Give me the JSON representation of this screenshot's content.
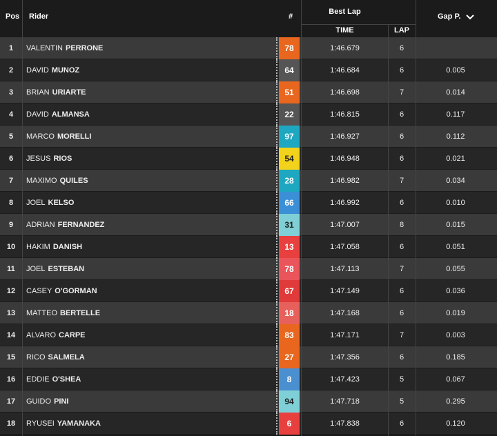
{
  "header": {
    "pos": "Pos",
    "rider": "Rider",
    "number": "#",
    "best_lap": "Best Lap",
    "time": "TIME",
    "lap": "LAP",
    "gap": "Gap P."
  },
  "rows": [
    {
      "pos": 1,
      "first": "VALENTIN",
      "last": "PERRONE",
      "number": 78,
      "color": "#e8661e",
      "time": "1:46.679",
      "lap": 6
    },
    {
      "pos": 2,
      "first": "DAVID",
      "last": "MUNOZ",
      "number": 64,
      "color": "#555555",
      "time": "1:46.684",
      "lap": 6,
      "gap": "0.005"
    },
    {
      "pos": 3,
      "first": "BRIAN",
      "last": "URIARTE",
      "number": 51,
      "color": "#e8661e",
      "time": "1:46.698",
      "lap": 7,
      "gap": "0.014"
    },
    {
      "pos": 4,
      "first": "DAVID",
      "last": "ALMANSA",
      "number": 22,
      "color": "#555555",
      "time": "1:46.815",
      "lap": 6,
      "gap": "0.117"
    },
    {
      "pos": 5,
      "first": "MARCO",
      "last": "MORELLI",
      "number": 97,
      "color": "#1ea7c0",
      "time": "1:46.927",
      "lap": 6,
      "gap": "0.112"
    },
    {
      "pos": 6,
      "first": "JESUS",
      "last": "RIOS",
      "number": 54,
      "color": "#f2d21a",
      "time": "1:46.948",
      "lap": 6,
      "gap": "0.021"
    },
    {
      "pos": 7,
      "first": "MAXIMO",
      "last": "QUILES",
      "number": 28,
      "color": "#1ea7c0",
      "time": "1:46.982",
      "lap": 7,
      "gap": "0.034"
    },
    {
      "pos": 8,
      "first": "JOEL",
      "last": "KELSO",
      "number": 66,
      "color": "#3a8fd6",
      "time": "1:46.992",
      "lap": 6,
      "gap": "0.010"
    },
    {
      "pos": 9,
      "first": "ADRIAN",
      "last": "FERNANDEZ",
      "number": 31,
      "color": "#7ecfd6",
      "time": "1:47.007",
      "lap": 8,
      "gap": "0.015"
    },
    {
      "pos": 10,
      "first": "HAKIM",
      "last": "DANISH",
      "number": 13,
      "color": "#e8403f",
      "time": "1:47.058",
      "lap": 6,
      "gap": "0.051"
    },
    {
      "pos": 11,
      "first": "JOEL",
      "last": "ESTEBAN",
      "number": 78,
      "color": "#e9555a",
      "time": "1:47.113",
      "lap": 7,
      "gap": "0.055"
    },
    {
      "pos": 12,
      "first": "CASEY",
      "last": "O'GORMAN",
      "number": 67,
      "color": "#e03a3a",
      "time": "1:47.149",
      "lap": 6,
      "gap": "0.036"
    },
    {
      "pos": 13,
      "first": "MATTEO",
      "last": "BERTELLE",
      "number": 18,
      "color": "#e8605c",
      "time": "1:47.168",
      "lap": 6,
      "gap": "0.019"
    },
    {
      "pos": 14,
      "first": "ALVARO",
      "last": "CARPE",
      "number": 83,
      "color": "#e8661e",
      "time": "1:47.171",
      "lap": 7,
      "gap": "0.003"
    },
    {
      "pos": 15,
      "first": "RICO",
      "last": "SALMELA",
      "number": 27,
      "color": "#e8661e",
      "time": "1:47.356",
      "lap": 6,
      "gap": "0.185"
    },
    {
      "pos": 16,
      "first": "EDDIE",
      "last": "O'SHEA",
      "number": 8,
      "color": "#4a8fd0",
      "time": "1:47.423",
      "lap": 5,
      "gap": "0.067"
    },
    {
      "pos": 17,
      "first": "GUIDO",
      "last": "PINI",
      "number": 94,
      "color": "#7ecfd6",
      "time": "1:47.718",
      "lap": 5,
      "gap": "0.295"
    },
    {
      "pos": 18,
      "first": "RYUSEI",
      "last": "YAMANAKA",
      "number": 6,
      "color": "#e8403f",
      "time": "1:47.838",
      "lap": 6,
      "gap": "0.120"
    }
  ]
}
